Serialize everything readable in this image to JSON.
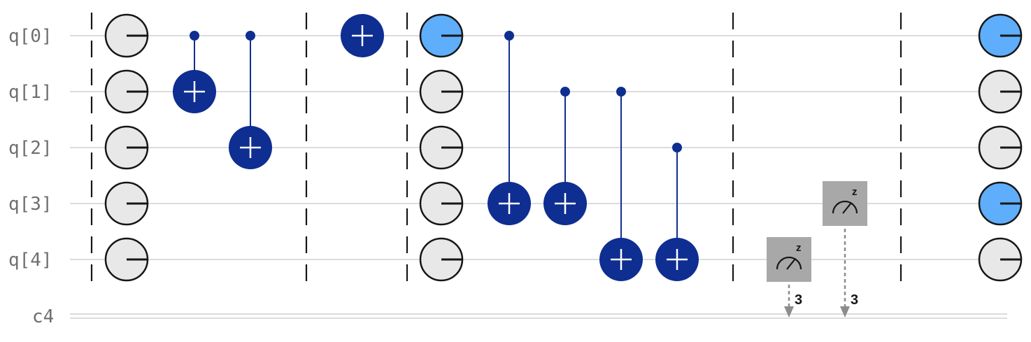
{
  "circuit": {
    "qubit_labels": [
      "q[0]",
      "q[1]",
      "q[2]",
      "q[3]",
      "q[4]"
    ],
    "classical_label": "c4",
    "barrier_columns": [
      0,
      3,
      5,
      11,
      14
    ],
    "initial_states": {
      "column": 1,
      "values": [
        "0",
        "0",
        "0",
        "0",
        "0"
      ]
    },
    "cnot_gates": [
      {
        "column": 2,
        "control": 0,
        "target": 1
      },
      {
        "column": 3,
        "control": 0,
        "target": 2
      },
      {
        "column": 4,
        "control": null,
        "target": 0
      },
      {
        "column": 7,
        "control": 0,
        "target": 3
      },
      {
        "column": 8,
        "control": 1,
        "target": 3
      },
      {
        "column": 9,
        "control": 1,
        "target": 4
      },
      {
        "column": 10,
        "control": 2,
        "target": 4
      }
    ],
    "state_columns": [
      {
        "column": 6,
        "values": [
          "1",
          "0",
          "0",
          "0",
          "0"
        ]
      },
      {
        "column": 16,
        "values": [
          "1",
          "0",
          "0",
          "1",
          "0"
        ]
      }
    ],
    "measurements": [
      {
        "column": 12,
        "qubit": 4,
        "basis": "z",
        "bit": "3"
      },
      {
        "column": 13,
        "qubit": 3,
        "basis": "z",
        "bit": "3"
      }
    ],
    "colors": {
      "gate": "#0f2e91",
      "state_zero": "#e8e8e8",
      "state_one": "#5eaefb",
      "wire": "#dcdcdc",
      "measure_box": "#a8a8a8",
      "dash": "#8c8c8c",
      "barrier": "#161616"
    }
  }
}
